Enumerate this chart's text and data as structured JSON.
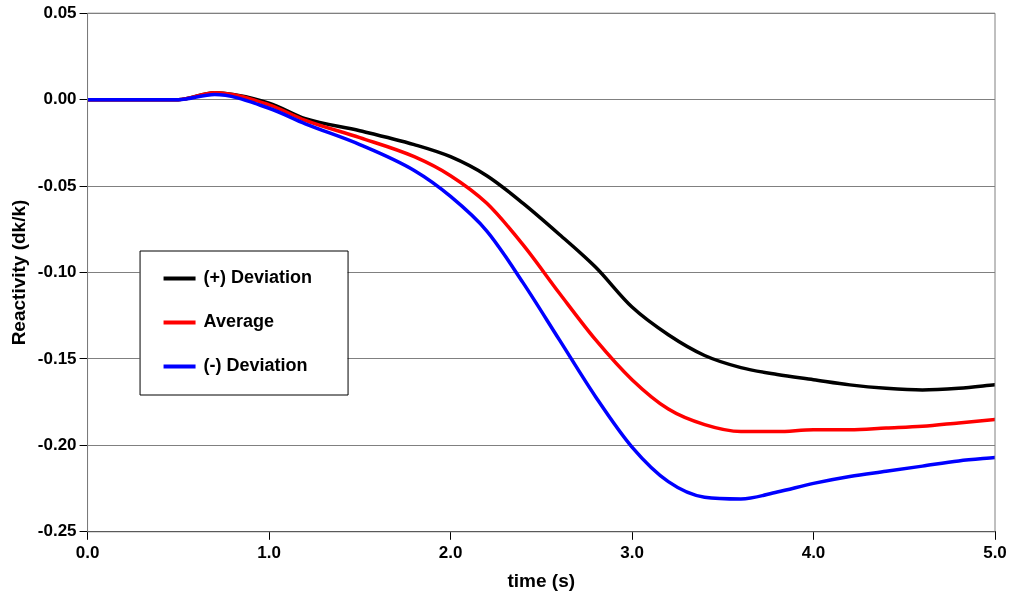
{
  "chart_data": {
    "type": "line",
    "xlabel": "time (s)",
    "ylabel": "Reactivity (dk/k)",
    "x": [
      0,
      0.5,
      0.7,
      1.0,
      1.2,
      1.5,
      1.8,
      2.0,
      2.2,
      2.4,
      2.6,
      2.8,
      3.0,
      3.2,
      3.4,
      3.6,
      3.8,
      4.0,
      4.2,
      4.4,
      4.6,
      4.8,
      5.0
    ],
    "series": [
      {
        "name": "(+) Deviation",
        "color": "#000000",
        "values": [
          0,
          0,
          0.004,
          -0.002,
          -0.011,
          -0.018,
          -0.026,
          -0.033,
          -0.044,
          -0.06,
          -0.078,
          -0.097,
          -0.12,
          -0.136,
          -0.148,
          -0.155,
          -0.159,
          -0.162,
          -0.165,
          -0.167,
          -0.168,
          -0.167,
          -0.165
        ]
      },
      {
        "name": "Average",
        "color": "#ff0000",
        "values": [
          0,
          0,
          0.004,
          -0.003,
          -0.012,
          -0.022,
          -0.033,
          -0.044,
          -0.06,
          -0.084,
          -0.112,
          -0.139,
          -0.162,
          -0.179,
          -0.188,
          -0.192,
          -0.192,
          -0.191,
          -0.191,
          -0.19,
          -0.189,
          -0.187,
          -0.185
        ]
      },
      {
        "name": "(-) Deviation",
        "color": "#0000ff",
        "values": [
          0,
          0,
          0.003,
          -0.005,
          -0.014,
          -0.026,
          -0.041,
          -0.056,
          -0.076,
          -0.106,
          -0.139,
          -0.172,
          -0.201,
          -0.221,
          -0.23,
          -0.231,
          -0.227,
          -0.222,
          -0.218,
          -0.215,
          -0.212,
          -0.209,
          -0.207
        ]
      }
    ],
    "xlim": [
      0,
      5
    ],
    "xticks": [
      {
        "value": 0,
        "label": "0.0"
      },
      {
        "value": 1,
        "label": "1.0"
      },
      {
        "value": 2,
        "label": "2.0"
      },
      {
        "value": 3,
        "label": "3.0"
      },
      {
        "value": 4,
        "label": "4.0"
      },
      {
        "value": 5,
        "label": "5.0"
      }
    ],
    "ylim": [
      -0.25,
      0.05
    ],
    "yticks": [
      {
        "value": -0.25,
        "label": "-0.25"
      },
      {
        "value": -0.2,
        "label": "-0.20"
      },
      {
        "value": -0.15,
        "label": "-0.15"
      },
      {
        "value": -0.1,
        "label": "-0.10"
      },
      {
        "value": -0.05,
        "label": "-0.05"
      },
      {
        "value": 0,
        "label": "0.00"
      },
      {
        "value": 0.05,
        "label": "0.05"
      }
    ],
    "grid": "y",
    "legend": "left",
    "marker": "none",
    "line_style": "solid"
  }
}
